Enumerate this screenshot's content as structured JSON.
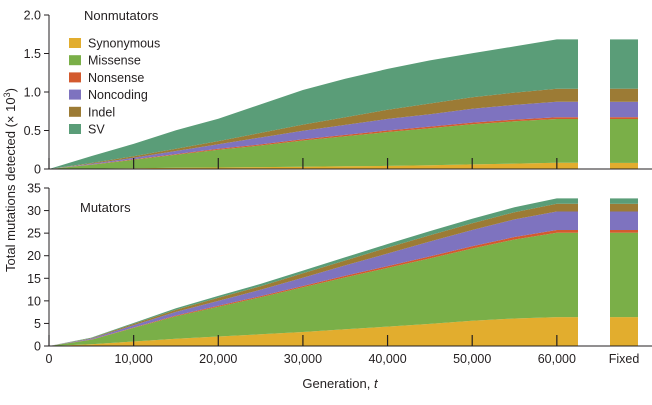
{
  "chart_data": {
    "type": "area",
    "stacked": true,
    "xlabel": "Generation, ",
    "xlabel_italic": "t",
    "ylabel": "Total mutations detected (× 10",
    "ylabel_sup": "3",
    "ylabel_close": ")",
    "x_tick_labels": [
      "0",
      "10,000",
      "20,000",
      "30,000",
      "40,000",
      "50,000",
      "60,000"
    ],
    "x_ticks": [
      0,
      10000,
      20000,
      30000,
      40000,
      50000,
      60000
    ],
    "fixed_label": "Fixed",
    "xlim": [
      0,
      62500
    ],
    "layers": [
      "Synonymous",
      "Missense",
      "Nonsense",
      "Noncoding",
      "Indel",
      "SV"
    ],
    "colors": {
      "Synonymous": "#e2ad2e",
      "Missense": "#7aaf48",
      "Nonsense": "#d35a2e",
      "Noncoding": "#7e73bf",
      "Indel": "#9c7b35",
      "SV": "#5a9d78"
    },
    "legend": {
      "placement": "top-left of upper panel",
      "entries": [
        "Synonymous",
        "Missense",
        "Nonsense",
        "Noncoding",
        "Indel",
        "SV"
      ]
    },
    "panels": [
      {
        "title": "Nonmutators",
        "ylim": [
          0,
          2.0
        ],
        "y_ticks": [
          0,
          0.5,
          1.0,
          1.5,
          2.0
        ],
        "y_tick_labels": [
          "0",
          "0.5",
          "1.0",
          "1.5",
          "2.0"
        ],
        "x": [
          0,
          5000,
          10000,
          15000,
          20000,
          25000,
          30000,
          35000,
          40000,
          45000,
          50000,
          55000,
          60000,
          62500
        ],
        "series": [
          {
            "name": "Synonymous",
            "values": [
              0,
              0.005,
              0.01,
              0.015,
              0.02,
              0.025,
              0.03,
              0.035,
              0.04,
              0.05,
              0.06,
              0.07,
              0.08,
              0.08
            ]
          },
          {
            "name": "Missense",
            "values": [
              0,
              0.05,
              0.11,
              0.17,
              0.23,
              0.28,
              0.34,
              0.39,
              0.44,
              0.48,
              0.52,
              0.55,
              0.57,
              0.57
            ]
          },
          {
            "name": "Nonsense",
            "values": [
              0,
              0.003,
              0.006,
              0.009,
              0.012,
              0.014,
              0.016,
              0.018,
              0.02,
              0.021,
              0.022,
              0.022,
              0.023,
              0.023
            ]
          },
          {
            "name": "Noncoding",
            "values": [
              0,
              0.01,
              0.02,
              0.04,
              0.06,
              0.09,
              0.11,
              0.13,
              0.15,
              0.16,
              0.18,
              0.19,
              0.2,
              0.2
            ]
          },
          {
            "name": "Indel",
            "values": [
              0,
              0.01,
              0.02,
              0.03,
              0.04,
              0.06,
              0.08,
              0.1,
              0.12,
              0.14,
              0.15,
              0.16,
              0.17,
              0.17
            ]
          },
          {
            "name": "SV",
            "values": [
              0,
              0.09,
              0.16,
              0.24,
              0.29,
              0.37,
              0.45,
              0.5,
              0.53,
              0.56,
              0.57,
              0.6,
              0.64,
              0.64
            ]
          }
        ],
        "fixed": [
          0.08,
          0.57,
          0.023,
          0.2,
          0.17,
          0.64
        ]
      },
      {
        "title": "Mutators",
        "ylim": [
          0,
          35
        ],
        "y_ticks": [
          0,
          5,
          10,
          15,
          20,
          25,
          30,
          35
        ],
        "y_tick_labels": [
          "0",
          "5",
          "10",
          "15",
          "20",
          "25",
          "30",
          "35"
        ],
        "x": [
          0,
          5000,
          10000,
          15000,
          20000,
          25000,
          30000,
          35000,
          40000,
          45000,
          50000,
          55000,
          60000,
          62500
        ],
        "series": [
          {
            "name": "Synonymous",
            "values": [
              0,
              0.4,
              1.0,
              1.6,
              2.1,
              2.6,
              3.1,
              3.7,
              4.3,
              4.9,
              5.6,
              6.1,
              6.4,
              6.4
            ]
          },
          {
            "name": "Missense",
            "values": [
              0,
              1.0,
              3.0,
              5.0,
              6.6,
              8.2,
              9.9,
              11.5,
              13.0,
              14.5,
              16.0,
              17.5,
              18.7,
              18.7
            ]
          },
          {
            "name": "Nonsense",
            "values": [
              0,
              0.05,
              0.1,
              0.15,
              0.2,
              0.25,
              0.3,
              0.35,
              0.4,
              0.45,
              0.5,
              0.55,
              0.6,
              0.6
            ]
          },
          {
            "name": "Noncoding",
            "values": [
              0,
              0.2,
              0.5,
              0.8,
              1.1,
              1.4,
              1.8,
              2.3,
              2.8,
              3.3,
              3.6,
              3.9,
              4.1,
              4.1
            ]
          },
          {
            "name": "Indel",
            "values": [
              0,
              0.1,
              0.3,
              0.5,
              0.7,
              0.8,
              1.0,
              1.1,
              1.3,
              1.4,
              1.5,
              1.6,
              1.7,
              1.7
            ]
          },
          {
            "name": "SV",
            "values": [
              0,
              0.1,
              0.2,
              0.3,
              0.4,
              0.5,
              0.6,
              0.7,
              0.8,
              0.9,
              1.0,
              1.1,
              1.2,
              1.2
            ]
          }
        ],
        "fixed": [
          6.4,
          18.7,
          0.6,
          4.1,
          1.7,
          1.2
        ]
      }
    ]
  }
}
